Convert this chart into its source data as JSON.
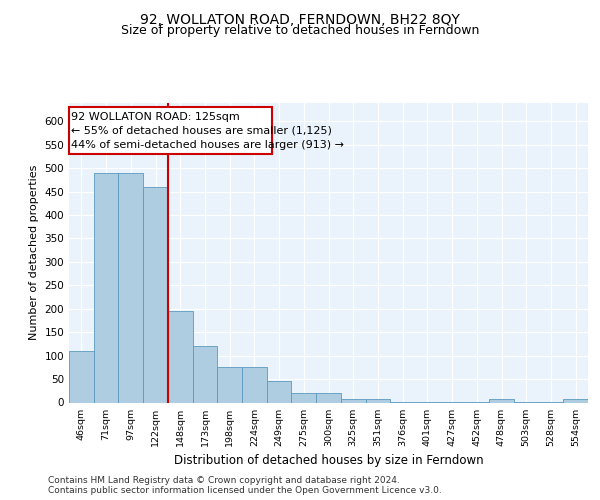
{
  "title": "92, WOLLATON ROAD, FERNDOWN, BH22 8QY",
  "subtitle": "Size of property relative to detached houses in Ferndown",
  "xlabel": "Distribution of detached houses by size in Ferndown",
  "ylabel": "Number of detached properties",
  "bar_color": "#aecde1",
  "bar_edge_color": "#5a9abf",
  "background_color": "#eaf3fb",
  "grid_color": "#ffffff",
  "categories": [
    "46sqm",
    "71sqm",
    "97sqm",
    "122sqm",
    "148sqm",
    "173sqm",
    "198sqm",
    "224sqm",
    "249sqm",
    "275sqm",
    "300sqm",
    "325sqm",
    "351sqm",
    "376sqm",
    "401sqm",
    "427sqm",
    "452sqm",
    "478sqm",
    "503sqm",
    "528sqm",
    "554sqm"
  ],
  "values": [
    110,
    490,
    490,
    460,
    195,
    120,
    75,
    75,
    45,
    20,
    20,
    8,
    8,
    2,
    2,
    2,
    2,
    8,
    2,
    2,
    8
  ],
  "ylim": [
    0,
    640
  ],
  "yticks": [
    0,
    50,
    100,
    150,
    200,
    250,
    300,
    350,
    400,
    450,
    500,
    550,
    600
  ],
  "property_line_x": 3.5,
  "property_line_color": "#cc0000",
  "annotation_text": "92 WOLLATON ROAD: 125sqm\n← 55% of detached houses are smaller (1,125)\n44% of semi-detached houses are larger (913) →",
  "annotation_box_color": "#ffffff",
  "annotation_box_edge": "#cc0000",
  "footer_text": "Contains HM Land Registry data © Crown copyright and database right 2024.\nContains public sector information licensed under the Open Government Licence v3.0.",
  "title_fontsize": 10,
  "subtitle_fontsize": 9,
  "annotation_fontsize": 8,
  "footer_fontsize": 6.5,
  "ylabel_fontsize": 8,
  "xlabel_fontsize": 8.5
}
